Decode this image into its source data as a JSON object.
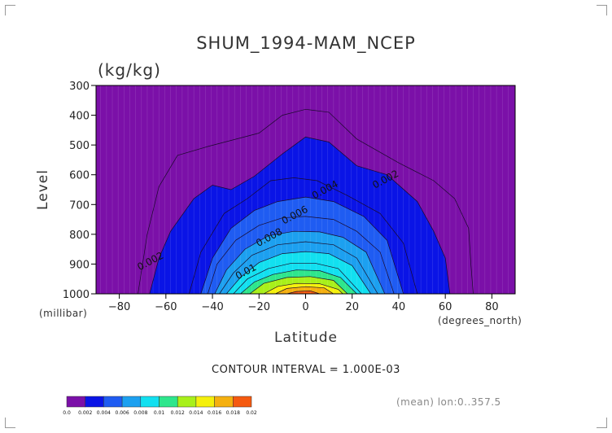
{
  "chart_data": {
    "type": "contour",
    "title": "SHUM_1994-MAM_NCEP",
    "units": "(kg/kg)",
    "xlabel": "Latitude",
    "x_unit_label": "(degrees_north)",
    "ylabel": "Level",
    "y_unit_label": "(millibar)",
    "xlim": [
      -90,
      90
    ],
    "ylim": [
      1000,
      300
    ],
    "x_ticks": [
      -80,
      -60,
      -40,
      -20,
      0,
      20,
      40,
      60,
      80
    ],
    "y_ticks": [
      300,
      400,
      500,
      600,
      700,
      800,
      900,
      1000
    ],
    "contour_interval_text": "CONTOUR INTERVAL = 1.000E-03",
    "footer_text": "(mean) lon:0..357.5",
    "levels": [
      0.0,
      0.002,
      0.004,
      0.006,
      0.008,
      0.01,
      0.012,
      0.014,
      0.016,
      0.018,
      0.02
    ],
    "colorbar_labels": [
      "0.0",
      "0.002",
      "0.004",
      "0.006",
      "0.008",
      "0.01",
      "0.012",
      "0.014",
      "0.016",
      "0.018",
      "0.02"
    ],
    "colors": [
      "#7b10a8",
      "#0a14e6",
      "#1f5cf2",
      "#1ca0f0",
      "#12e0f0",
      "#2ee68c",
      "#a8f01a",
      "#f5f00c",
      "#f5b010",
      "#f55a10",
      "#f01c10"
    ],
    "background_color": "#7b10a8",
    "contour_labels": [
      {
        "text": "0.002",
        "lat": 35,
        "lev": 625
      },
      {
        "text": "0.002",
        "lat": -66,
        "lev": 900
      },
      {
        "text": "0.004",
        "lat": 9,
        "lev": 660
      },
      {
        "text": "0.006",
        "lat": -4,
        "lev": 745
      },
      {
        "text": "0.008",
        "lat": -15,
        "lev": 820
      },
      {
        "text": "0.01",
        "lat": -25,
        "lev": 935
      }
    ],
    "contours": [
      {
        "level": 0.001,
        "points": [
          [
            -72,
            1000
          ],
          [
            -68,
            800
          ],
          [
            -63,
            640
          ],
          [
            -55,
            535
          ],
          [
            -42,
            505
          ],
          [
            -20,
            460
          ],
          [
            -10,
            400
          ],
          [
            0,
            380
          ],
          [
            10,
            390
          ],
          [
            22,
            480
          ],
          [
            40,
            560
          ],
          [
            55,
            620
          ],
          [
            64,
            680
          ],
          [
            70,
            780
          ],
          [
            71,
            900
          ],
          [
            72,
            1000
          ]
        ]
      },
      {
        "level": 0.002,
        "points": [
          [
            -67,
            1000
          ],
          [
            -63,
            880
          ],
          [
            -58,
            790
          ],
          [
            -48,
            680
          ],
          [
            -40,
            635
          ],
          [
            -32,
            650
          ],
          [
            -22,
            605
          ],
          [
            -10,
            530
          ],
          [
            0,
            473
          ],
          [
            10,
            490
          ],
          [
            22,
            570
          ],
          [
            35,
            600
          ],
          [
            48,
            690
          ],
          [
            55,
            790
          ],
          [
            60,
            880
          ],
          [
            62,
            1000
          ]
        ]
      },
      {
        "level": 0.003,
        "points": [
          [
            -50,
            1000
          ],
          [
            -45,
            860
          ],
          [
            -35,
            730
          ],
          [
            -25,
            680
          ],
          [
            -15,
            620
          ],
          [
            -5,
            610
          ],
          [
            5,
            620
          ],
          [
            18,
            670
          ],
          [
            32,
            730
          ],
          [
            42,
            830
          ],
          [
            48,
            1000
          ]
        ]
      },
      {
        "level": 0.004,
        "points": [
          [
            -45,
            1000
          ],
          [
            -40,
            880
          ],
          [
            -32,
            780
          ],
          [
            -22,
            720
          ],
          [
            -12,
            690
          ],
          [
            0,
            675
          ],
          [
            12,
            690
          ],
          [
            25,
            740
          ],
          [
            35,
            820
          ],
          [
            42,
            1000
          ]
        ]
      },
      {
        "level": 0.005,
        "points": [
          [
            -42,
            1000
          ],
          [
            -38,
            900
          ],
          [
            -30,
            820
          ],
          [
            -20,
            770
          ],
          [
            -10,
            745
          ],
          [
            0,
            740
          ],
          [
            12,
            750
          ],
          [
            22,
            790
          ],
          [
            32,
            860
          ],
          [
            38,
            1000
          ]
        ]
      },
      {
        "level": 0.006,
        "points": [
          [
            -39,
            1000
          ],
          [
            -34,
            920
          ],
          [
            -26,
            850
          ],
          [
            -16,
            805
          ],
          [
            -5,
            790
          ],
          [
            6,
            792
          ],
          [
            16,
            810
          ],
          [
            26,
            860
          ],
          [
            34,
            1000
          ]
        ]
      },
      {
        "level": 0.007,
        "points": [
          [
            -37,
            1000
          ],
          [
            -31,
            930
          ],
          [
            -23,
            870
          ],
          [
            -12,
            835
          ],
          [
            0,
            825
          ],
          [
            12,
            835
          ],
          [
            22,
            880
          ],
          [
            31,
            1000
          ]
        ]
      },
      {
        "level": 0.008,
        "points": [
          [
            -34,
            1000
          ],
          [
            -28,
            945
          ],
          [
            -20,
            895
          ],
          [
            -10,
            865
          ],
          [
            0,
            858
          ],
          [
            10,
            865
          ],
          [
            20,
            905
          ],
          [
            28,
            1000
          ]
        ]
      },
      {
        "level": 0.009,
        "points": [
          [
            -31,
            1000
          ],
          [
            -25,
            950
          ],
          [
            -16,
            915
          ],
          [
            -6,
            897
          ],
          [
            4,
            897
          ],
          [
            14,
            915
          ],
          [
            24,
            1000
          ]
        ]
      },
      {
        "level": 0.01,
        "points": [
          [
            -28,
            1000
          ],
          [
            -22,
            960
          ],
          [
            -14,
            935
          ],
          [
            -4,
            920
          ],
          [
            6,
            922
          ],
          [
            15,
            945
          ],
          [
            22,
            1000
          ]
        ]
      },
      {
        "level": 0.012,
        "points": [
          [
            -24,
            1000
          ],
          [
            -18,
            965
          ],
          [
            -8,
            945
          ],
          [
            2,
            942
          ],
          [
            12,
            955
          ],
          [
            18,
            1000
          ]
        ]
      },
      {
        "level": 0.014,
        "points": [
          [
            -18,
            1000
          ],
          [
            -12,
            975
          ],
          [
            -4,
            965
          ],
          [
            6,
            966
          ],
          [
            14,
            985
          ],
          [
            16,
            1000
          ]
        ]
      },
      {
        "level": 0.016,
        "points": [
          [
            -13,
            1000
          ],
          [
            -8,
            982
          ],
          [
            0,
            976
          ],
          [
            8,
            980
          ],
          [
            12,
            1000
          ]
        ]
      },
      {
        "level": 0.018,
        "points": [
          [
            -8,
            1000
          ],
          [
            -4,
            992
          ],
          [
            2,
            990
          ],
          [
            6,
            1000
          ]
        ]
      }
    ]
  }
}
